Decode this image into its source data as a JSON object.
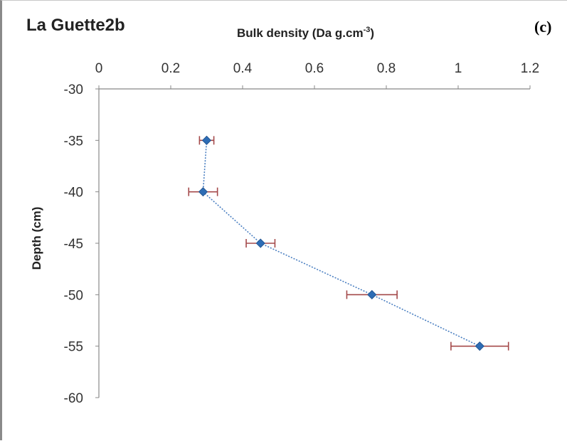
{
  "chart_data": {
    "type": "scatter",
    "title": "La Guette2b",
    "panel_label": "(c)",
    "xlabel": "Bulk density (Da g.cm",
    "xlabel_sup": "-3",
    "xlabel_close": ")",
    "ylabel": "Depth (cm)",
    "xlim": [
      0,
      1.2
    ],
    "ylim": [
      -60,
      -30
    ],
    "x_ticks": [
      "0",
      "0.2",
      "0.4",
      "0.6",
      "0.8",
      "1",
      "1.2"
    ],
    "y_ticks": [
      "-30",
      "-35",
      "-40",
      "-45",
      "-50",
      "-55",
      "-60"
    ],
    "x_axis_position": "top",
    "grid": false,
    "legend": "none",
    "series": [
      {
        "points": [
          {
            "x": 0.3,
            "y": -35,
            "xerr": 0.02
          },
          {
            "x": 0.29,
            "y": -40,
            "xerr": 0.04
          },
          {
            "x": 0.45,
            "y": -45,
            "xerr": 0.04
          },
          {
            "x": 0.76,
            "y": -50,
            "xerr": 0.07
          },
          {
            "x": 1.06,
            "y": -55,
            "xerr": 0.08
          }
        ]
      }
    ],
    "colors": {
      "marker": "#2e6db5",
      "line": "#4a7fc1",
      "error_bar": "#a4494a",
      "axis": "#888888"
    }
  }
}
